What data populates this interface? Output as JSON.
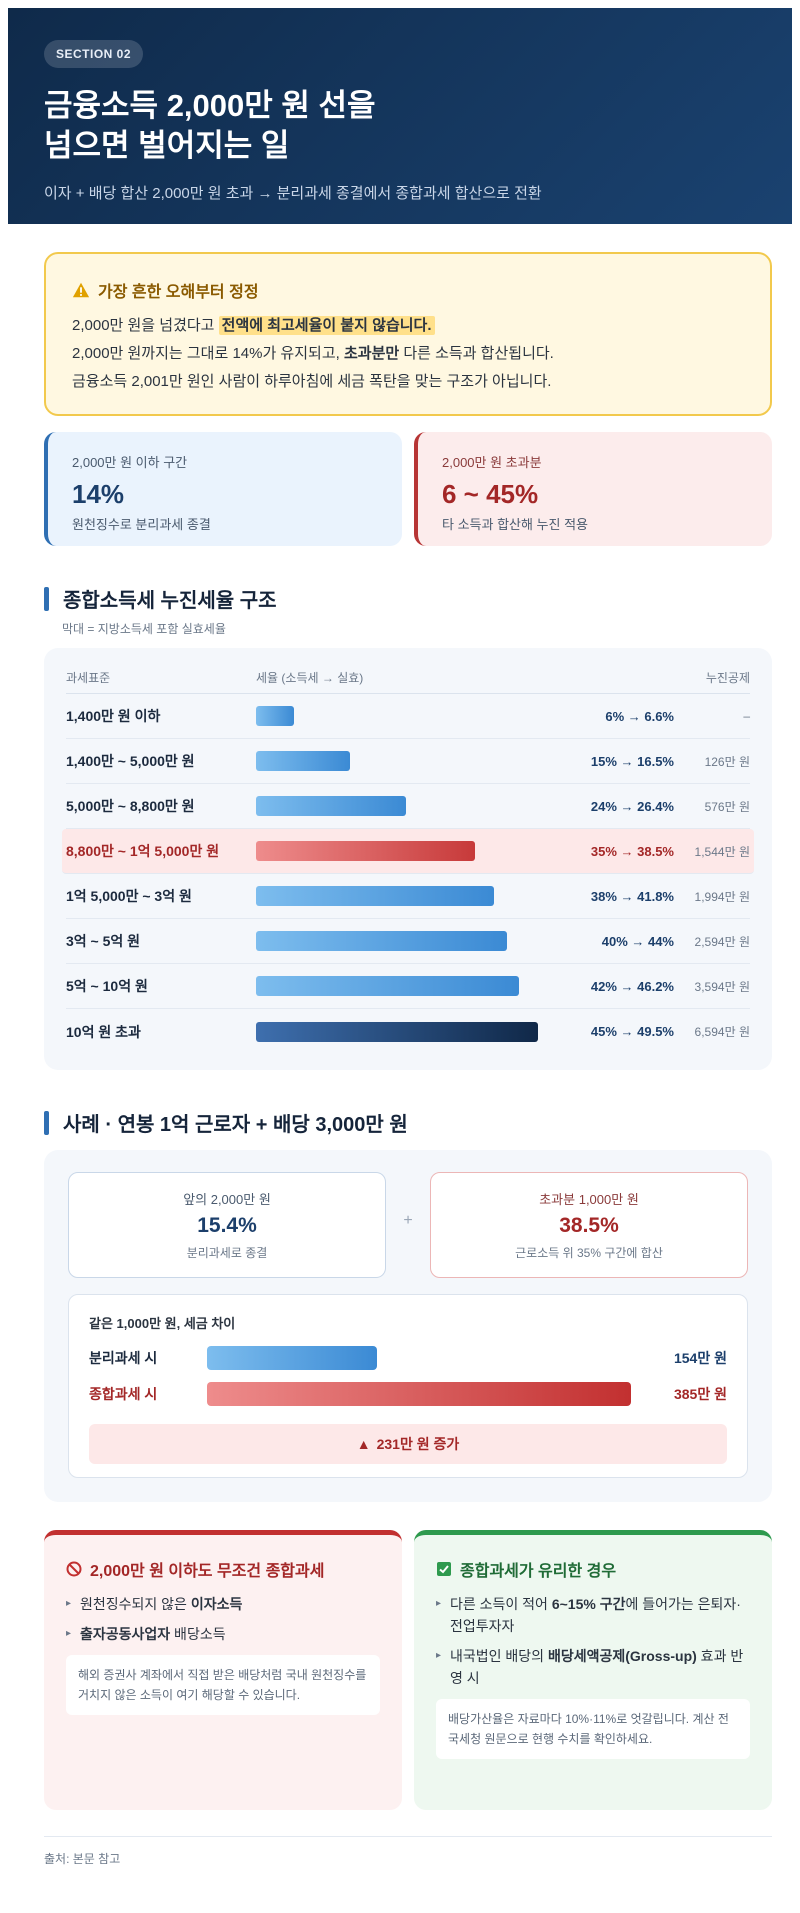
{
  "header": {
    "section_label": "SECTION 02",
    "title_line1": "금융소득 2,000만 원 선을",
    "title_line2": "넘으면 벌어지는 일",
    "subtitle": "이자 + 배당 합산 2,000만 원 초과 → 분리과세 종결에서 종합과세 합산으로 전환"
  },
  "warning": {
    "title": "가장 흔한 오해부터 정정",
    "line1_a": "2,000만 원을 넘겼다고 ",
    "line1_hl": "전액에 최고세율이 붙지 않습니다.",
    "line2_a": "2,000만 원까지는 그대로 14%가 유지되고, ",
    "line2_b": "초과분만",
    "line2_c": " 다른 소득과 합산됩니다.",
    "line3": "금융소득 2,001만 원인 사람이 하루아침에 세금 폭탄을 맞는 구조가 아닙니다."
  },
  "stats": {
    "below": {
      "label": "2,000만 원 이하 구간",
      "value": "14%",
      "desc": "원천징수로 분리과세 종결"
    },
    "above": {
      "label": "2,000만 원 초과분",
      "value": "6 ~ 45%",
      "desc": "타 소득과 합산해 누진 적용"
    }
  },
  "progressive": {
    "heading": "종합소득세 누진세율 구조",
    "note": "막대 = 지방소득세 포함 실효세율",
    "columns": {
      "bracket": "과세표준",
      "rate": "세율 (소득세 → 실효)",
      "deduction": "누진공제"
    },
    "rows": [
      {
        "bracket": "1,400만 원 이하",
        "rate": "6% → 6.6%",
        "effective": 6.6,
        "deduction": "–"
      },
      {
        "bracket": "1,400만 ~ 5,000만 원",
        "rate": "15% → 16.5%",
        "effective": 16.5,
        "deduction": "126만 원"
      },
      {
        "bracket": "5,000만 ~ 8,800만 원",
        "rate": "24% → 26.4%",
        "effective": 26.4,
        "deduction": "576만 원"
      },
      {
        "bracket": "8,800만 ~ 1억 5,000만 원",
        "rate": "35% → 38.5%",
        "effective": 38.5,
        "deduction": "1,544만 원"
      },
      {
        "bracket": "1억 5,000만 ~ 3억 원",
        "rate": "38% → 41.8%",
        "effective": 41.8,
        "deduction": "1,994만 원"
      },
      {
        "bracket": "3억 ~ 5억 원",
        "rate": "40% → 44%",
        "effective": 44,
        "deduction": "2,594만 원"
      },
      {
        "bracket": "5억 ~ 10억 원",
        "rate": "42% → 46.2%",
        "effective": 46.2,
        "deduction": "3,594만 원"
      },
      {
        "bracket": "10억 원 초과",
        "rate": "45% → 49.5%",
        "effective": 49.5,
        "deduction": "6,594만 원"
      }
    ]
  },
  "case": {
    "heading": "사례 · 연봉 1억 근로자 + 배당 3,000만 원",
    "left": {
      "label": "앞의 2,000만 원",
      "value": "15.4%",
      "desc": "분리과세로 종결"
    },
    "plus": "+",
    "right": {
      "label": "초과분 1,000만 원",
      "value": "38.5%",
      "desc": "근로소득 위 35% 구간에 합산"
    },
    "compare_title": "같은 1,000만 원, 세금 차이",
    "separate": {
      "label": "분리과세 시",
      "value_text": "154만 원",
      "value": 154
    },
    "combined": {
      "label": "종합과세 시",
      "value_text": "385만 원",
      "value": 385
    },
    "delta": "231만 원 증가"
  },
  "cards": {
    "mandatory": {
      "title": "2,000만 원 이하도 무조건 종합과세",
      "item1_b": "원천징수되지 않은 ",
      "item1_c": "이자소득",
      "item2_b": "출자공동사업자",
      "item2_c": " 배당소득",
      "note": "해외 증권사 계좌에서 직접 받은 배당처럼 국내 원천징수를 거치지 않은 소득이 여기 해당할 수 있습니다."
    },
    "favorable": {
      "title": "종합과세가 유리한 경우",
      "item1_a": "다른 소득이 적어 ",
      "item1_b": "6~15% 구간",
      "item1_c": "에 들어가는 은퇴자·전업투자자",
      "item2_a": "내국법인 배당의 ",
      "item2_b": "배당세액공제(Gross-up)",
      "item2_c": " 효과 반영 시",
      "note": "배당가산율은 자료마다 10%·11%로 엇갈립니다. 계산 전 국세청 원문으로 현행 수치를 확인하세요."
    }
  },
  "footer": {
    "source": "출처: 본문 참고"
  },
  "colors": {
    "navy": "#0f2a4a",
    "accent_blue": "#2f6fb3",
    "accent_red": "#c23030",
    "accent_green": "#2e9a4e",
    "highlight": "#ffe08a"
  }
}
